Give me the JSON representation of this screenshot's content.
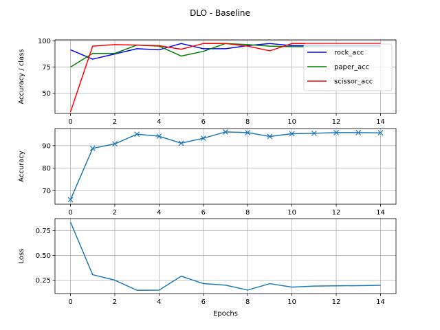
{
  "figure": {
    "title": "DLO - Baseline"
  },
  "colors": {
    "rock": "#0000ff",
    "paper": "#008000",
    "scissor": "#ff0000",
    "default": "#1f77b4",
    "grid": "#b0b0b0"
  },
  "chart_data": [
    {
      "type": "line",
      "ylabel": "Accuracy / class",
      "xlabel": "",
      "xlim": [
        -0.7,
        14.7
      ],
      "ylim": [
        30.5,
        101
      ],
      "xticks": [
        0,
        2,
        4,
        6,
        8,
        10,
        12,
        14
      ],
      "yticks": [
        50,
        75,
        100
      ],
      "grid": true,
      "legend": "upper right",
      "x": [
        0,
        1,
        2,
        3,
        4,
        5,
        6,
        7,
        8,
        9,
        10,
        11,
        12,
        13,
        14
      ],
      "series": [
        {
          "name": "rock_acc",
          "color": "#0000ff",
          "marker": "none",
          "values": [
            91.5,
            82.5,
            87.5,
            92.5,
            91.5,
            97.5,
            92.5,
            92.5,
            95.5,
            97.5,
            95.5,
            95.5,
            95.5,
            95.5,
            95.5
          ]
        },
        {
          "name": "paper_acc",
          "color": "#008000",
          "marker": "none",
          "values": [
            75,
            88,
            88,
            96,
            95,
            85.5,
            90,
            97.5,
            96.5,
            95,
            94.5,
            94.5,
            94.5,
            94.5,
            94.5
          ]
        },
        {
          "name": "scissor_acc",
          "color": "#ff0000",
          "marker": "none",
          "values": [
            32,
            95,
            96.5,
            96,
            95.5,
            92,
            97.5,
            97.5,
            95,
            90.5,
            97.5,
            97.5,
            97.5,
            97.5,
            97.5
          ]
        }
      ]
    },
    {
      "type": "line",
      "ylabel": "Accuracy",
      "xlabel": "",
      "xlim": [
        -0.7,
        14.7
      ],
      "ylim": [
        64,
        97.6
      ],
      "xticks": [
        0,
        2,
        4,
        6,
        8,
        10,
        12,
        14
      ],
      "yticks": [
        70,
        80,
        90
      ],
      "grid": true,
      "x": [
        0,
        1,
        2,
        3,
        4,
        5,
        6,
        7,
        8,
        9,
        10,
        11,
        12,
        13,
        14
      ],
      "series": [
        {
          "color": "#1f77b4",
          "marker": "x",
          "values": [
            66,
            88.8,
            90.8,
            95.1,
            94.2,
            91.1,
            93.3,
            96.1,
            95.8,
            94.1,
            95.3,
            95.5,
            95.8,
            95.8,
            95.7
          ]
        }
      ]
    },
    {
      "type": "line",
      "ylabel": "Loss",
      "xlabel": "Epochs",
      "xlim": [
        -0.7,
        14.7
      ],
      "ylim": [
        0.115,
        0.87
      ],
      "xticks": [
        0,
        2,
        4,
        6,
        8,
        10,
        12,
        14
      ],
      "yticks": [
        0.25,
        0.5,
        0.75
      ],
      "ytick_labels": [
        "0.25",
        "0.50",
        "0.75"
      ],
      "grid": true,
      "x": [
        0,
        1,
        2,
        3,
        4,
        5,
        6,
        7,
        8,
        9,
        10,
        11,
        12,
        13,
        14
      ],
      "series": [
        {
          "color": "#1f77b4",
          "marker": "none",
          "values": [
            0.835,
            0.305,
            0.25,
            0.148,
            0.15,
            0.29,
            0.215,
            0.2,
            0.15,
            0.215,
            0.18,
            0.19,
            0.193,
            0.195,
            0.198
          ]
        }
      ]
    }
  ]
}
